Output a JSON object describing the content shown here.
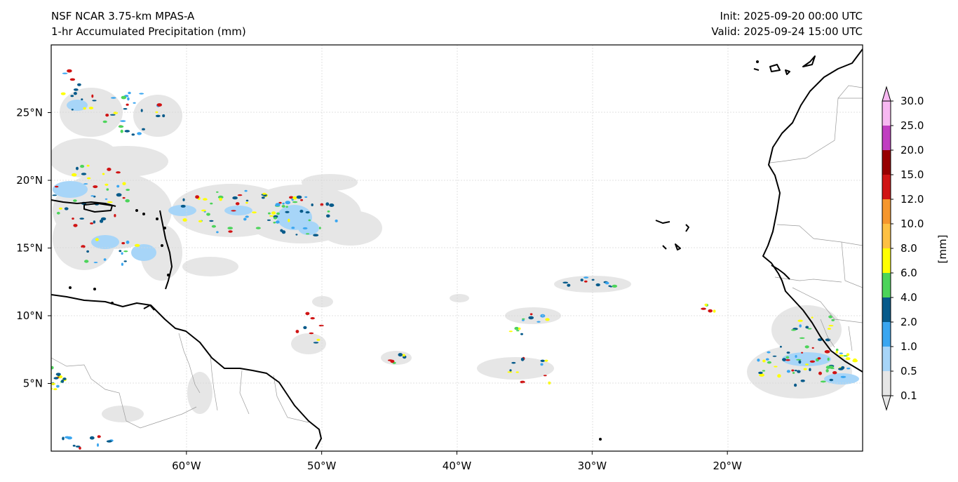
{
  "header": {
    "model": "NSF NCAR 3.75-km MPAS-A",
    "field": "1-hr Accumulated Precipitation (mm)",
    "init": "Init: 2025-09-20 00:00 UTC",
    "valid": "Valid: 2025-09-24 15:00 UTC"
  },
  "map": {
    "lon_range": [
      -70,
      -10
    ],
    "lat_range": [
      0,
      30
    ],
    "lat_ticks": [
      {
        "value": 25,
        "label": "25°N"
      },
      {
        "value": 20,
        "label": "20°N"
      },
      {
        "value": 15,
        "label": "15°N"
      },
      {
        "value": 10,
        "label": "10°N"
      },
      {
        "value": 5,
        "label": "5°N"
      }
    ],
    "lon_ticks": [
      {
        "value": -60,
        "label": "60°W"
      },
      {
        "value": -50,
        "label": "50°W"
      },
      {
        "value": -40,
        "label": "40°W"
      },
      {
        "value": -30,
        "label": "30°W"
      },
      {
        "value": -20,
        "label": "20°W"
      }
    ],
    "gridlines": true
  },
  "colorbar": {
    "unit_label": "[mm]",
    "levels": [
      "0.1",
      "0.5",
      "1.0",
      "2.0",
      "4.0",
      "6.0",
      "8.0",
      "10.0",
      "12.0",
      "15.0",
      "20.0",
      "25.0",
      "30.0"
    ],
    "colors": [
      "#e6e6e6",
      "#a7d5f8",
      "#3aa6f0",
      "#065a8a",
      "#4cd45a",
      "#ffff00",
      "#fdc043",
      "#f5962d",
      "#d01414",
      "#970000",
      "#c13ec1",
      "#f7b8f1"
    ]
  }
}
